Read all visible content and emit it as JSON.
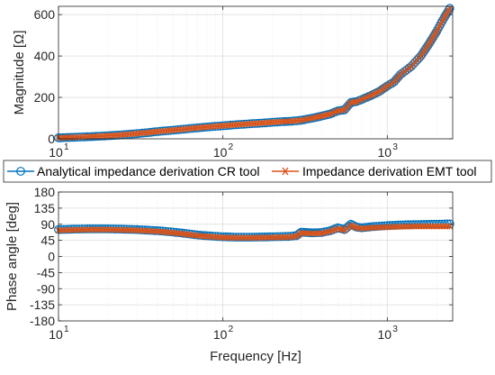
{
  "chart_data": [
    {
      "type": "line",
      "xscale": "log",
      "xlim": [
        10,
        2500
      ],
      "ylim": [
        0,
        640
      ],
      "ylabel": "Magnitude [Ω]",
      "xlabel": "",
      "grid": true,
      "yticks": [
        0,
        200,
        400,
        600
      ],
      "ytick_labels": [
        "0",
        "200",
        "400",
        "600"
      ],
      "xticks": [
        10,
        100,
        1000
      ],
      "xtick_labels": [
        "10",
        "10",
        "10"
      ],
      "xtick_exponents": [
        "1",
        "2",
        "3"
      ],
      "series": [
        {
          "name": "Analytical impedance derivation CR tool",
          "color": "#0072BD",
          "marker": "circle",
          "x": [
            10,
            11,
            12,
            13,
            14,
            15,
            17,
            19,
            21,
            24,
            27,
            30,
            35,
            40,
            50,
            60,
            70,
            80,
            100,
            120,
            150,
            180,
            200,
            230,
            260,
            280,
            300,
            350,
            400,
            450,
            500,
            550,
            600,
            650,
            700,
            800,
            900,
            1000,
            1100,
            1200,
            1400,
            1600,
            1800,
            2000,
            2200,
            2400
          ],
          "values": [
            5,
            6,
            7,
            8,
            9,
            10,
            12,
            14,
            16,
            19,
            22,
            25,
            30,
            35,
            42,
            48,
            53,
            57,
            63,
            68,
            73,
            77,
            80,
            83,
            85,
            87,
            90,
            100,
            110,
            120,
            135,
            140,
            175,
            180,
            190,
            210,
            230,
            255,
            275,
            310,
            350,
            400,
            460,
            520,
            580,
            630
          ]
        },
        {
          "name": "Impedance derivation EMT tool",
          "color": "#D95319",
          "marker": "x",
          "x": [
            10,
            11,
            12,
            13,
            14,
            15,
            17,
            19,
            21,
            24,
            27,
            30,
            35,
            40,
            50,
            60,
            70,
            80,
            100,
            120,
            150,
            180,
            200,
            230,
            260,
            280,
            300,
            350,
            400,
            450,
            500,
            550,
            600,
            650,
            700,
            800,
            900,
            1000,
            1100,
            1200,
            1400,
            1600,
            1800,
            2000,
            2200,
            2400
          ],
          "values": [
            5,
            6,
            7,
            8,
            9,
            10,
            12,
            14,
            16,
            19,
            22,
            25,
            30,
            35,
            42,
            48,
            53,
            57,
            63,
            68,
            73,
            77,
            80,
            83,
            85,
            87,
            90,
            100,
            110,
            120,
            135,
            140,
            175,
            180,
            190,
            210,
            230,
            255,
            275,
            310,
            350,
            400,
            460,
            520,
            580,
            630
          ]
        }
      ]
    },
    {
      "type": "line",
      "xscale": "log",
      "xlim": [
        10,
        2500
      ],
      "ylim": [
        -180,
        180
      ],
      "ylabel": "Phase angle [deg]",
      "xlabel": "Frequency [Hz]",
      "grid": true,
      "yticks": [
        -180,
        -135,
        -90,
        -45,
        0,
        45,
        90,
        135,
        180
      ],
      "ytick_labels": [
        "-180",
        "-135",
        "-90",
        "-45",
        "0",
        "45",
        "90",
        "135",
        "180"
      ],
      "xticks": [
        10,
        100,
        1000
      ],
      "xtick_labels": [
        "10",
        "10",
        "10"
      ],
      "xtick_exponents": [
        "1",
        "2",
        "3"
      ],
      "series": [
        {
          "name": "Analytical impedance derivation CR tool",
          "color": "#0072BD",
          "marker": "circle",
          "x": [
            10,
            12,
            15,
            20,
            25,
            30,
            40,
            50,
            60,
            70,
            80,
            100,
            120,
            150,
            200,
            250,
            280,
            300,
            320,
            350,
            400,
            450,
            500,
            550,
            600,
            650,
            700,
            800,
            1000,
            1200,
            1500,
            2000,
            2400
          ],
          "values": [
            75,
            76,
            77,
            77,
            76,
            75,
            72,
            68,
            64,
            60,
            58,
            55,
            54,
            54,
            55,
            56,
            58,
            68,
            67,
            66,
            67,
            72,
            80,
            75,
            90,
            82,
            80,
            83,
            86,
            88,
            89,
            90,
            91
          ]
        },
        {
          "name": "Impedance derivation EMT tool",
          "color": "#D95319",
          "marker": "x",
          "x": [
            10,
            12,
            15,
            20,
            25,
            30,
            40,
            50,
            60,
            70,
            80,
            100,
            120,
            150,
            200,
            250,
            280,
            300,
            320,
            350,
            400,
            450,
            500,
            550,
            600,
            650,
            700,
            800,
            1000,
            1200,
            1500,
            2000,
            2400
          ],
          "values": [
            73,
            74,
            75,
            75,
            74,
            73,
            70,
            66,
            62,
            58,
            56,
            53,
            52,
            52,
            53,
            54,
            56,
            66,
            65,
            64,
            65,
            70,
            78,
            73,
            87,
            80,
            78,
            80,
            82,
            83,
            84,
            84,
            84
          ]
        }
      ]
    }
  ],
  "legend": {
    "items": [
      {
        "label": "Analytical impedance derivation CR tool",
        "color": "#0072BD",
        "marker": "circle"
      },
      {
        "label": "Impedance derivation EMT tool",
        "color": "#D95319",
        "marker": "x"
      }
    ],
    "placement": "between-plots"
  }
}
